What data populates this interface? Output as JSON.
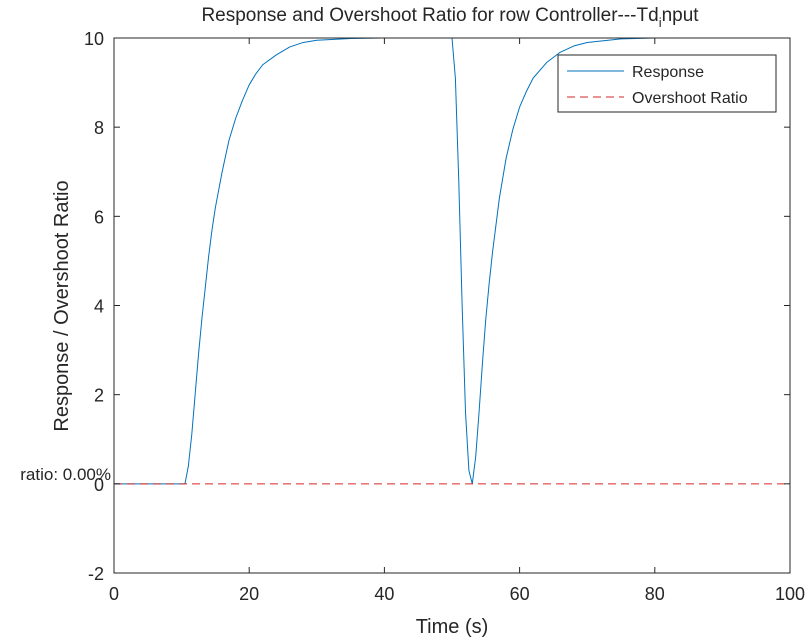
{
  "chart_data": {
    "type": "line",
    "title_main": "Response and Overshoot Ratio for row Controller---Td",
    "title_sub": "i",
    "title_tail": "nput",
    "xlabel": "Time (s)",
    "ylabel": "Response / Overshoot Ratio",
    "xlim": [
      0,
      100
    ],
    "ylim": [
      -2,
      10
    ],
    "xticks": [
      0,
      20,
      40,
      60,
      80,
      100
    ],
    "yticks": [
      -2,
      0,
      2,
      4,
      6,
      8,
      10
    ],
    "grid": false,
    "legend_position": "top-right",
    "annotation": "ratio: 0.00%",
    "series": [
      {
        "name": "Response",
        "style": "solid",
        "color": "#0072bd",
        "x": [
          0,
          10.5,
          11,
          11.5,
          12,
          12.5,
          13,
          13.5,
          14,
          14.5,
          15,
          15.5,
          16,
          17,
          18,
          19,
          20,
          21,
          22,
          24,
          26,
          28,
          30,
          35,
          40,
          45,
          49.9,
          50,
          50.5,
          51,
          51.5,
          52,
          52.5,
          53,
          53.5,
          54,
          54.5,
          55,
          55.5,
          56,
          57,
          58,
          59,
          60,
          61,
          62,
          64,
          66,
          68,
          70,
          75,
          80,
          90,
          100
        ],
        "y": [
          0,
          0,
          0.4,
          1.1,
          2.0,
          2.9,
          3.7,
          4.4,
          5.1,
          5.7,
          6.2,
          6.6,
          7.0,
          7.7,
          8.2,
          8.6,
          8.95,
          9.2,
          9.4,
          9.62,
          9.8,
          9.9,
          9.95,
          9.99,
          10,
          10,
          10,
          10,
          9.1,
          6.8,
          4.0,
          1.6,
          0.3,
          0,
          0.6,
          1.6,
          2.7,
          3.7,
          4.5,
          5.2,
          6.4,
          7.3,
          7.95,
          8.45,
          8.8,
          9.1,
          9.45,
          9.68,
          9.82,
          9.9,
          9.98,
          10,
          10,
          10
        ]
      },
      {
        "name": "Overshoot Ratio",
        "style": "dashed",
        "color": "#d62728",
        "x": [
          0,
          100
        ],
        "y": [
          0,
          0
        ]
      }
    ]
  },
  "colors": {
    "response": "#0072bd",
    "overshoot": "#d62728",
    "axis": "#262626",
    "background": "#ffffff"
  }
}
